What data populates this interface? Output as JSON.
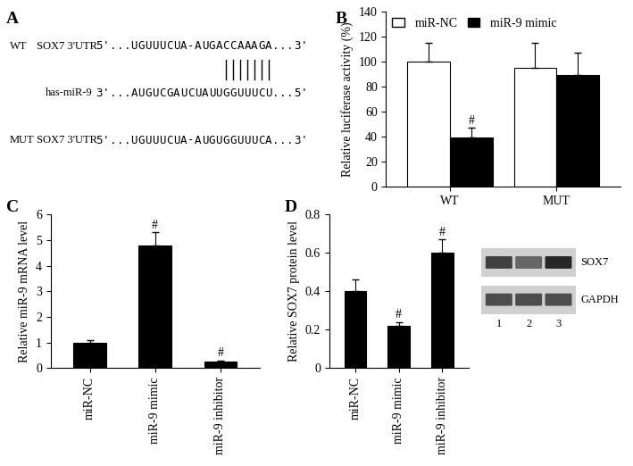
{
  "panel_a": {
    "label": "A",
    "rows": [
      {
        "name": "WT",
        "gene": "SOX7 3'UTR",
        "sequence": "5'...UGUUUCUA-AUGACCAAAGA...3'"
      },
      {
        "name": "has-miR-9",
        "sequence": "3'...AUGUCGAUCUAUUGGUUUCU...5'"
      },
      {
        "name": "MUT",
        "gene": "SOX7 3'UTR",
        "sequence": "5'...UGUUUCUA-AUGUGGUUUCA...3'"
      }
    ]
  },
  "chart_data": [
    {
      "panel": "B",
      "type": "bar",
      "categories": [
        "WT",
        "MUT"
      ],
      "series": [
        {
          "name": "miR-NC",
          "color": "#ffffff",
          "values": [
            100,
            95
          ],
          "errors": [
            15,
            20
          ]
        },
        {
          "name": "miR-9 mimic",
          "color": "#000000",
          "values": [
            39,
            89
          ],
          "errors": [
            8,
            18
          ]
        }
      ],
      "y_label": "Relative luciferase activity (%)",
      "ylim": [
        0,
        140
      ],
      "yticks": [
        0,
        20,
        40,
        60,
        80,
        100,
        120,
        140
      ],
      "legend": "upper left",
      "annotations": [
        {
          "text": "#",
          "category": "WT",
          "series": "miR-9 mimic"
        }
      ]
    },
    {
      "panel": "C",
      "type": "bar",
      "categories": [
        "miR-NC",
        "miR-9 mimic",
        "miR-9 inhibitor"
      ],
      "values": [
        1,
        4.8,
        0.25
      ],
      "errors": [
        0.1,
        0.5,
        0.05
      ],
      "color": "#000000",
      "y_label": "Relative miR-9 mRNA level",
      "ylim": [
        0,
        6
      ],
      "yticks": [
        0,
        1,
        2,
        3,
        4,
        5,
        6
      ],
      "annotations": [
        {
          "text": "#",
          "category": "miR-9 mimic"
        },
        {
          "text": "#",
          "category": "miR-9 inhibitor"
        }
      ]
    },
    {
      "panel": "D",
      "type": "bar",
      "categories": [
        "miR-NC",
        "miR-9 mimic",
        "miR-9 inhibitor"
      ],
      "values": [
        0.4,
        0.22,
        0.6
      ],
      "errors": [
        0.06,
        0.02,
        0.07
      ],
      "color": "#000000",
      "y_label": "Relative SOX7 protein level",
      "ylim": [
        0,
        0.8
      ],
      "yticks": [
        0,
        0.2,
        0.4,
        0.6,
        0.8
      ],
      "annotations": [
        {
          "text": "#",
          "category": "miR-9 mimic"
        },
        {
          "text": "#",
          "category": "miR-9 inhibitor"
        }
      ]
    }
  ],
  "blot": {
    "bands": [
      "SOX7",
      "GAPDH"
    ],
    "lanes": [
      "1",
      "2",
      "3"
    ]
  }
}
